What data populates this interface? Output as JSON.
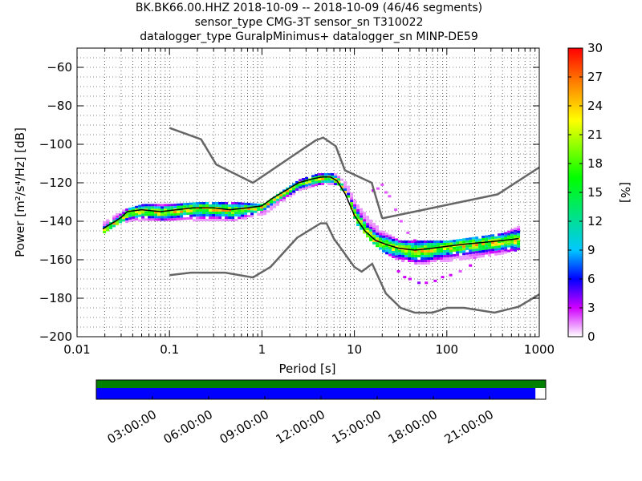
{
  "title_lines": [
    "BK.BK66.00.HHZ   2018-10-09 -- 2018-10-09  (46/46 segments)",
    "sensor_type CMG-3T sensor_sn T310022",
    "datalogger_type GuralpMinimus+ datalogger_sn MINP-DE59"
  ],
  "chart_data": {
    "type": "heatmap",
    "subtype": "probabilistic power spectral density",
    "xlabel": "Period [s]",
    "ylabel": "Power [m²/s⁴/Hz] [dB]",
    "xscale": "log",
    "xlim": [
      0.01,
      1000
    ],
    "ylim": [
      -200,
      -50
    ],
    "x_ticks": [
      0.01,
      0.1,
      1,
      10,
      100,
      1000
    ],
    "x_tick_labels": [
      "0.01",
      "0.1",
      "1",
      "10",
      "100",
      "1000"
    ],
    "y_ticks": [
      -200,
      -180,
      -160,
      -140,
      -120,
      -100,
      -80,
      -60
    ],
    "y_tick_labels": [
      "−200",
      "−180",
      "−160",
      "−140",
      "−120",
      "−100",
      "−80",
      "−60"
    ],
    "grid": true,
    "colorbar": {
      "label": "[%]",
      "ticks": [
        0,
        3,
        6,
        9,
        12,
        15,
        18,
        21,
        24,
        27,
        30
      ],
      "tick_labels": [
        "0",
        "3",
        "6",
        "9",
        "12",
        "15",
        "18",
        "21",
        "24",
        "27",
        "30"
      ],
      "range": [
        0,
        30
      ],
      "colormap": [
        "#ffffff",
        "#d000ff",
        "#0000ff",
        "#00c8ff",
        "#00ff00",
        "#ffff00",
        "#ff8000",
        "#ff0000"
      ]
    },
    "psd_mode": {
      "x": [
        0.019,
        0.022,
        0.026,
        0.03,
        0.035,
        0.05,
        0.08,
        0.12,
        0.18,
        0.3,
        0.45,
        0.7,
        1.0,
        1.3,
        1.8,
        2.5,
        3.5,
        4.5,
        5.5,
        6.5,
        8,
        10,
        13,
        17,
        22,
        30,
        45,
        70,
        100,
        150,
        250,
        400,
        600
      ],
      "y": [
        -144,
        -142,
        -140,
        -138,
        -135,
        -134,
        -135,
        -134,
        -133,
        -133,
        -134,
        -133,
        -132,
        -128,
        -124,
        -120,
        -118,
        -117,
        -117,
        -119,
        -126,
        -137,
        -145,
        -150,
        -152,
        -154,
        -155,
        -154,
        -153,
        -152,
        -151,
        -150,
        -149
      ]
    },
    "psd_spread": {
      "x": [
        0.019,
        0.03,
        0.05,
        0.1,
        0.2,
        0.5,
        1,
        1.5,
        2.5,
        4,
        6,
        8,
        10,
        15,
        20,
        30,
        50,
        100,
        200,
        400,
        600
      ],
      "y_min": [
        -145,
        -140,
        -139,
        -139,
        -139,
        -139,
        -136,
        -130,
        -123,
        -121,
        -120,
        -125,
        -140,
        -150,
        -155,
        -160,
        -162,
        -160,
        -158,
        -156,
        -154
      ],
      "y_max": [
        -140,
        -134,
        -131,
        -131,
        -130,
        -130,
        -131,
        -125,
        -118,
        -115,
        -115,
        -120,
        -130,
        -140,
        -145,
        -150,
        -150,
        -150,
        -148,
        -146,
        -142
      ]
    },
    "outliers": [
      {
        "x": 16,
        "y": -124,
        "value": 3
      },
      {
        "x": 18,
        "y": -123,
        "value": 2
      },
      {
        "x": 20,
        "y": -121,
        "value": 2
      },
      {
        "x": 22,
        "y": -125,
        "value": 2
      },
      {
        "x": 24,
        "y": -127,
        "value": 2
      },
      {
        "x": 28,
        "y": -134,
        "value": 2
      },
      {
        "x": 32,
        "y": -140,
        "value": 2
      },
      {
        "x": 38,
        "y": -146,
        "value": 2
      },
      {
        "x": 45,
        "y": -150,
        "value": 3
      },
      {
        "x": 30,
        "y": -166,
        "value": 3
      },
      {
        "x": 35,
        "y": -169,
        "value": 3
      },
      {
        "x": 40,
        "y": -170,
        "value": 3
      },
      {
        "x": 50,
        "y": -172,
        "value": 4
      },
      {
        "x": 60,
        "y": -172,
        "value": 3
      },
      {
        "x": 75,
        "y": -171,
        "value": 3
      },
      {
        "x": 90,
        "y": -169,
        "value": 3
      },
      {
        "x": 110,
        "y": -168,
        "value": 3
      },
      {
        "x": 140,
        "y": -166,
        "value": 2
      },
      {
        "x": 180,
        "y": -163,
        "value": 3
      },
      {
        "x": 200,
        "y": -159,
        "value": 2
      },
      {
        "x": 300,
        "y": -156,
        "value": 3
      },
      {
        "x": 500,
        "y": -155,
        "value": 3
      }
    ],
    "nhnm": {
      "x": [
        0.1,
        0.22,
        0.32,
        0.8,
        3.8,
        4.6,
        6.3,
        7.9,
        15.4,
        20
      ],
      "y": [
        -91.5,
        -97.4,
        -110.5,
        -120,
        -98,
        -96.5,
        -101,
        -113.5,
        -120,
        -138.5
      ]
    },
    "nhnm_long": {
      "x": [
        20,
        354.8,
        1000
      ],
      "y": [
        -138.5,
        -126,
        -112
      ]
    },
    "nlnm": {
      "x": [
        0.1,
        0.17,
        0.4,
        0.8,
        1.24,
        2.4,
        4.3,
        5,
        6,
        10,
        12,
        15.6,
        21.9,
        31.6,
        45,
        70,
        101,
        154,
        328,
        600,
        1000
      ],
      "y": [
        -168,
        -166.7,
        -166.7,
        -169.2,
        -163.7,
        -148.6,
        -141.1,
        -141.1,
        -149,
        -163.8,
        -166.2,
        -162.1,
        -177.5,
        -185,
        -187.5,
        -187.5,
        -185,
        -185,
        -187.5,
        -184.4,
        -178
      ]
    },
    "coverage_bar": {
      "time_tick_labels": [
        "03:00:00",
        "06:00:00",
        "09:00:00",
        "12:00:00",
        "15:00:00",
        "18:00:00",
        "21:00:00"
      ],
      "time_ticks_hours": [
        3,
        6,
        9,
        12,
        15,
        18,
        21
      ],
      "range_hours": [
        0,
        24
      ],
      "data_coverage_end_hours": 23.45,
      "top_color": "#008000",
      "data_color": "#0000ff"
    }
  }
}
